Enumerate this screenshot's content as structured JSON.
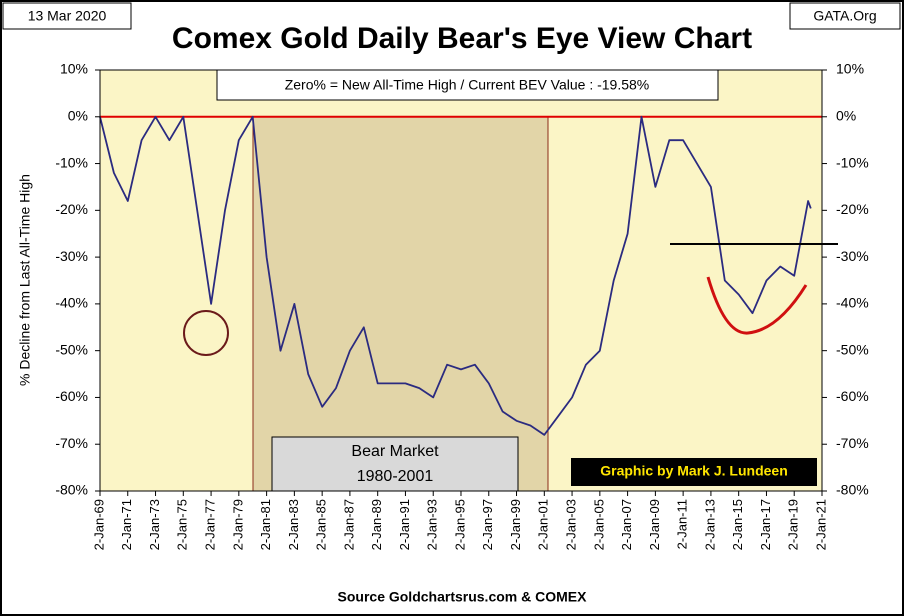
{
  "chart_data": {
    "type": "line",
    "date_label": "13 Mar 2020",
    "source_tag": "GATA.Org",
    "title": "Comex Gold Daily Bear's Eye View Chart",
    "subtitle": "Zero% = New All-Time High  / Current BEV Value :  -19.58%",
    "y_label": "% Decline from Last All-Time High",
    "annotations": [
      "Bear Market",
      "1980-2001"
    ],
    "credit": "Graphic by Mark J. Lundeen",
    "source": "Source Goldchartsrus.com & COMEX",
    "color": "#2b2b80",
    "x": [
      "1969-01-02",
      "1970-01-02",
      "1971-01-02",
      "1972-01-02",
      "1973-01-02",
      "1974-01-02",
      "1975-01-02",
      "1976-01-02",
      "1977-01-02",
      "1978-01-02",
      "1979-01-02",
      "1980-01-02",
      "1981-01-02",
      "1982-01-02",
      "1983-01-02",
      "1984-01-02",
      "1985-01-02",
      "1986-01-02",
      "1987-01-02",
      "1988-01-02",
      "1989-01-02",
      "1990-01-02",
      "1991-01-02",
      "1992-01-02",
      "1993-01-02",
      "1994-01-02",
      "1995-01-02",
      "1996-01-02",
      "1997-01-02",
      "1998-01-02",
      "1999-01-02",
      "2000-01-02",
      "2001-01-02",
      "2002-01-02",
      "2003-01-02",
      "2004-01-02",
      "2005-01-02",
      "2006-01-02",
      "2007-01-02",
      "2008-01-02",
      "2009-01-02",
      "2010-01-02",
      "2011-01-02",
      "2012-01-02",
      "2013-01-02",
      "2014-01-02",
      "2015-01-02",
      "2016-01-02",
      "2017-01-02",
      "2018-01-02",
      "2019-01-02",
      "2020-01-02",
      "2020-03-13"
    ],
    "values": [
      0,
      -12,
      -18,
      -5,
      0,
      -5,
      0,
      -20,
      -40,
      -20,
      -5,
      0,
      -30,
      -50,
      -40,
      -55,
      -62,
      -58,
      -50,
      -45,
      -57,
      -57,
      -57,
      -58,
      -60,
      -53,
      -54,
      -53,
      -57,
      -63,
      -65,
      -66,
      -68,
      -64,
      -60,
      -53,
      -50,
      -35,
      -25,
      0,
      -15,
      -5,
      -5,
      -10,
      -15,
      -35,
      -38,
      -42,
      -35,
      -32,
      -34,
      -18,
      -19.58
    ],
    "xlim": [
      "1969-01-02",
      "2021-01-02"
    ],
    "xticks": [
      {
        "value": "1969-01-02",
        "label": "2-Jan-69"
      },
      {
        "value": "1971-01-02",
        "label": "2-Jan-71"
      },
      {
        "value": "1973-01-02",
        "label": "2-Jan-73"
      },
      {
        "value": "1975-01-02",
        "label": "2-Jan-75"
      },
      {
        "value": "1977-01-02",
        "label": "2-Jan-77"
      },
      {
        "value": "1979-01-02",
        "label": "2-Jan-79"
      },
      {
        "value": "1981-01-02",
        "label": "2-Jan-81"
      },
      {
        "value": "1983-01-02",
        "label": "2-Jan-83"
      },
      {
        "value": "1985-01-02",
        "label": "2-Jan-85"
      },
      {
        "value": "1987-01-02",
        "label": "2-Jan-87"
      },
      {
        "value": "1989-01-02",
        "label": "2-Jan-89"
      },
      {
        "value": "1991-01-02",
        "label": "2-Jan-91"
      },
      {
        "value": "1993-01-02",
        "label": "2-Jan-93"
      },
      {
        "value": "1995-01-02",
        "label": "2-Jan-95"
      },
      {
        "value": "1997-01-02",
        "label": "2-Jan-97"
      },
      {
        "value": "1999-01-02",
        "label": "2-Jan-99"
      },
      {
        "value": "2001-01-02",
        "label": "2-Jan-01"
      },
      {
        "value": "2003-01-02",
        "label": "2-Jan-03"
      },
      {
        "value": "2005-01-02",
        "label": "2-Jan-05"
      },
      {
        "value": "2007-01-02",
        "label": "2-Jan-07"
      },
      {
        "value": "2009-01-02",
        "label": "2-Jan-09"
      },
      {
        "value": "2011-01-02",
        "label": "2-Jan-11"
      },
      {
        "value": "2013-01-02",
        "label": "2-Jan-13"
      },
      {
        "value": "2015-01-02",
        "label": "2-Jan-15"
      },
      {
        "value": "2017-01-02",
        "label": "2-Jan-17"
      },
      {
        "value": "2019-01-02",
        "label": "2-Jan-19"
      },
      {
        "value": "2021-01-02",
        "label": "2-Jan-21"
      }
    ],
    "ylim": [
      -80,
      10
    ],
    "yticks": [
      {
        "value": 10,
        "label": "10%"
      },
      {
        "value": 0,
        "label": "0%"
      },
      {
        "value": -10,
        "label": "-10%"
      },
      {
        "value": -20,
        "label": "-20%"
      },
      {
        "value": -30,
        "label": "-30%"
      },
      {
        "value": -40,
        "label": "-40%"
      },
      {
        "value": -50,
        "label": "-50%"
      },
      {
        "value": -60,
        "label": "-60%"
      },
      {
        "value": -70,
        "label": "-70%"
      },
      {
        "value": -80,
        "label": "-80%"
      }
    ],
    "y2lim": [
      -80,
      10
    ],
    "y2ticks": [
      {
        "value": 10,
        "label": "10%"
      },
      {
        "value": 0,
        "label": "0%"
      },
      {
        "value": -10,
        "label": "-10%"
      },
      {
        "value": -20,
        "label": "-20%"
      },
      {
        "value": -30,
        "label": "-30%"
      },
      {
        "value": -40,
        "label": "-40%"
      },
      {
        "value": -50,
        "label": "-50%"
      },
      {
        "value": -60,
        "label": "-60%"
      },
      {
        "value": -70,
        "label": "-70%"
      },
      {
        "value": -80,
        "label": "-80%"
      }
    ]
  }
}
